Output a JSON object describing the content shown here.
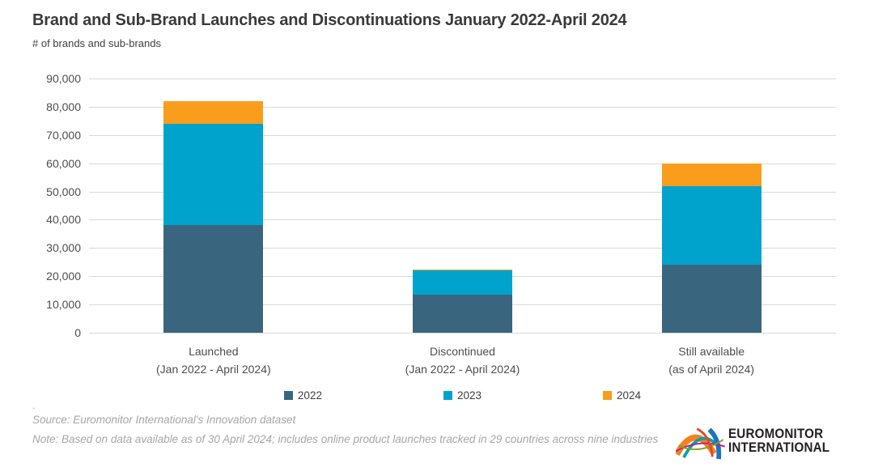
{
  "header": {
    "title": "Brand and Sub-Brand Launches and Discontinuations January 2022-April 2024",
    "subtitle": "# of brands and sub-brands"
  },
  "chart_data": {
    "type": "bar",
    "stacked": true,
    "title": "Brand and Sub-Brand Launches and Discontinuations January 2022-April 2024",
    "ylabel": "# of brands and sub-brands",
    "categories": [
      {
        "line1": "Launched",
        "line2": "(Jan 2022 - April 2024)"
      },
      {
        "line1": "Discontinued",
        "line2": "(Jan 2022 - April 2024)"
      },
      {
        "line1": "Still available",
        "line2": "(as of April 2024)"
      }
    ],
    "series": [
      {
        "name": "2022",
        "color": "#3A657E",
        "values": [
          38000,
          13600,
          24000
        ]
      },
      {
        "name": "2023",
        "color": "#00A3CC",
        "values": [
          36000,
          8400,
          28000
        ]
      },
      {
        "name": "2024",
        "color": "#F99D1C",
        "values": [
          8000,
          500,
          8000
        ]
      }
    ],
    "ylim": [
      0,
      90000
    ],
    "y_ticks": [
      "90,000",
      "80,000",
      "70,000",
      "60,000",
      "50,000",
      "40,000",
      "30,000",
      "20,000",
      "10,000",
      "0"
    ],
    "grid": true,
    "legend_position": "bottom"
  },
  "footer": {
    "dot": ".",
    "source": "Source: Euromonitor International's Innovation dataset",
    "note": "Note: Based on data available as of 30 April 2024; includes online product launches tracked in 29 countries across nine industries"
  },
  "logo": {
    "line1": "EUROMONITOR",
    "line2": "INTERNATIONAL"
  }
}
